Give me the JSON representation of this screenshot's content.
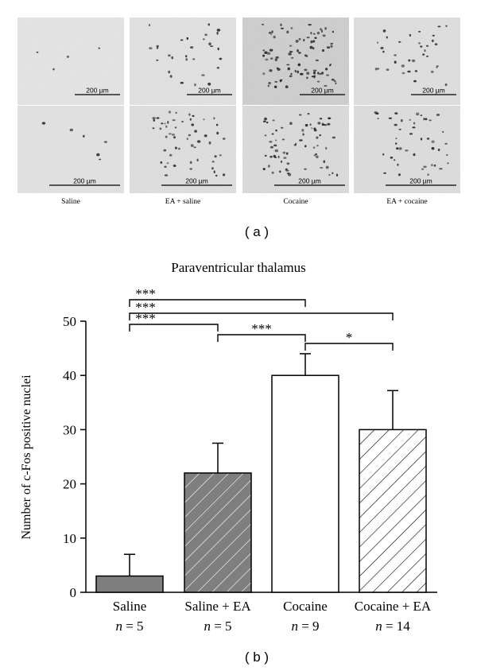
{
  "panel_a": {
    "label": "( a )",
    "scale_bar_text": "200 µm",
    "column_labels": [
      "Saline",
      "EA + saline",
      "Cocaine",
      "EA + cocaine"
    ],
    "rows": 2
  },
  "panel_b_label": "( b )",
  "chart_data": {
    "type": "bar",
    "title": "Paraventricular thalamus",
    "ylabel": "Number of c-Fos positive nuclei",
    "xlabel": "",
    "ylim": [
      0,
      50
    ],
    "yticks": [
      0,
      10,
      20,
      30,
      40,
      50
    ],
    "grid": false,
    "categories": [
      "Saline",
      "Saline + EA",
      "Cocaine",
      "Cocaine + EA"
    ],
    "sample_sizes": [
      "n = 5",
      "n = 5",
      "n = 9",
      "n = 14"
    ],
    "values": [
      3,
      22,
      40,
      30
    ],
    "errors": [
      4,
      5.5,
      4,
      7.2
    ],
    "fills": [
      "#7f7f7f",
      "#7f7f7f",
      "#ffffff",
      "#ffffff"
    ],
    "hatched": [
      false,
      true,
      false,
      true
    ],
    "significance": [
      {
        "from": 0,
        "to": 2,
        "label": "***"
      },
      {
        "from": 0,
        "to": 3,
        "label": "***"
      },
      {
        "from": 0,
        "to": 1,
        "label": "***"
      },
      {
        "from": 1,
        "to": 2,
        "label": "***"
      },
      {
        "from": 2,
        "to": 3,
        "label": "*"
      }
    ]
  }
}
